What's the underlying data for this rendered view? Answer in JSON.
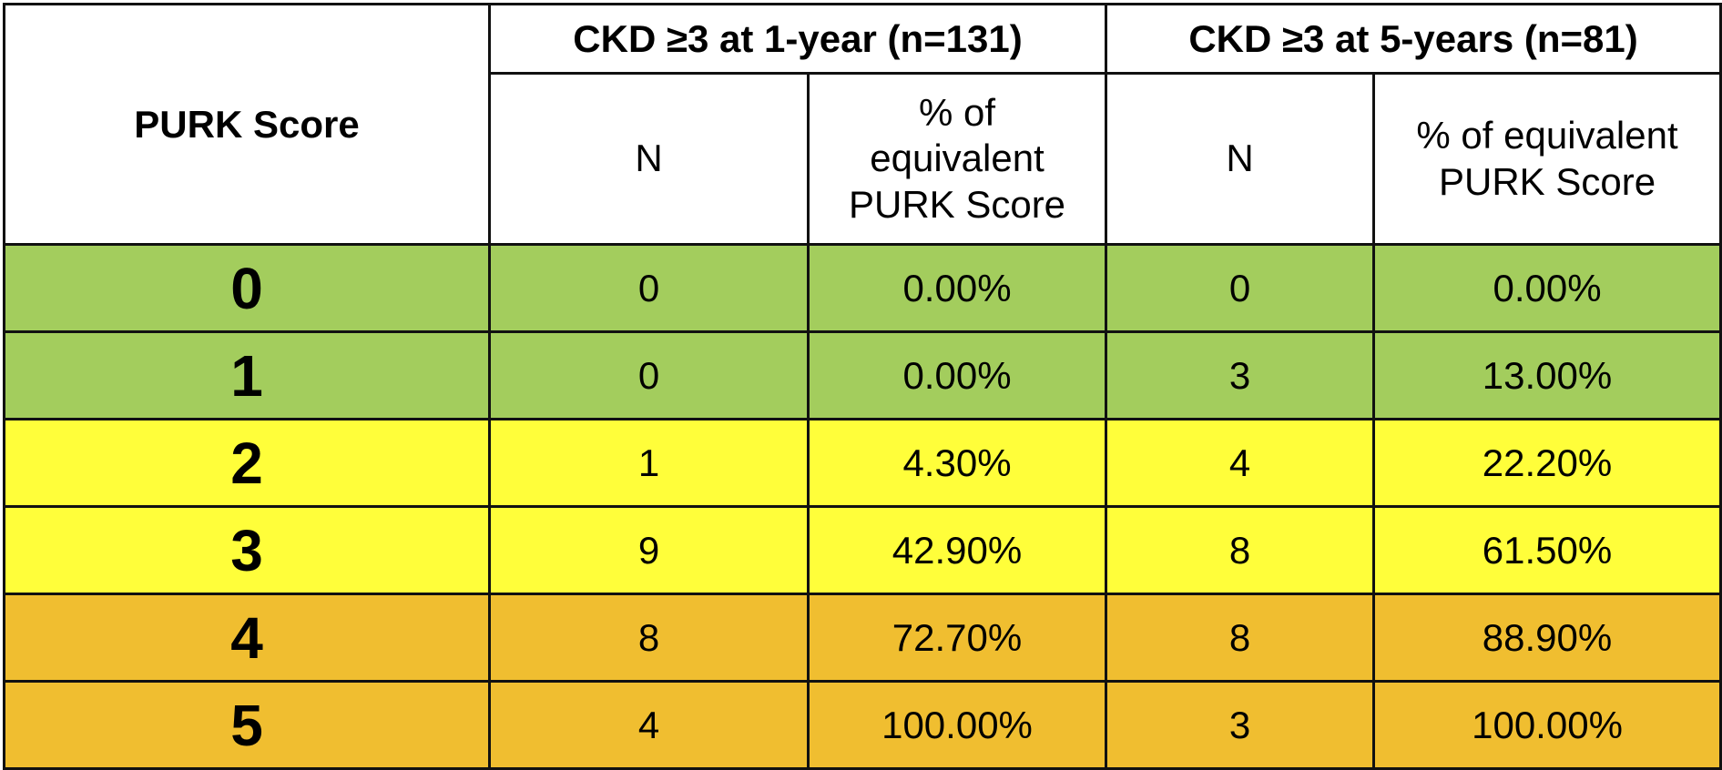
{
  "chart_data": {
    "type": "table",
    "header": {
      "score_label": "PURK Score",
      "group_1yr": "CKD ≥3 at 1-year (n=131)",
      "group_5yr": "CKD ≥3 at 5-years (n=81)",
      "n_label": "N",
      "pct_label_1yr_lines": [
        "% of",
        "equivalent",
        "PURK Score"
      ],
      "pct_label_5yr_lines": [
        "% of equivalent",
        "PURK Score"
      ]
    },
    "rows": [
      {
        "score": "0",
        "n_1yr": "0",
        "pct_1yr": "0.00%",
        "n_5yr": "0",
        "pct_5yr": "0.00%",
        "band": "green"
      },
      {
        "score": "1",
        "n_1yr": "0",
        "pct_1yr": "0.00%",
        "n_5yr": "3",
        "pct_5yr": "13.00%",
        "band": "green"
      },
      {
        "score": "2",
        "n_1yr": "1",
        "pct_1yr": "4.30%",
        "n_5yr": "4",
        "pct_5yr": "22.20%",
        "band": "yellow"
      },
      {
        "score": "3",
        "n_1yr": "9",
        "pct_1yr": "42.90%",
        "n_5yr": "8",
        "pct_5yr": "61.50%",
        "band": "yellow"
      },
      {
        "score": "4",
        "n_1yr": "8",
        "pct_1yr": "72.70%",
        "n_5yr": "8",
        "pct_5yr": "88.90%",
        "band": "orange"
      },
      {
        "score": "5",
        "n_1yr": "4",
        "pct_1yr": "100.00%",
        "n_5yr": "3",
        "pct_5yr": "100.00%",
        "band": "orange"
      }
    ],
    "band_colors": {
      "green": "#a3cd5d",
      "yellow": "#fffe3a",
      "orange": "#f0be30"
    }
  }
}
